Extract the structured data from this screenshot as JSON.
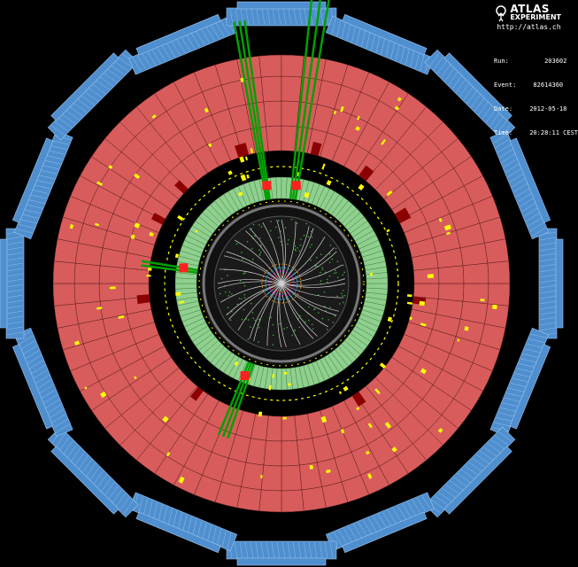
{
  "experiment": {
    "logo_line1": "ATLAS",
    "logo_line2": "EXPERIMENT",
    "url": "http://atlas.ch"
  },
  "event_info": [
    {
      "key": "Run:",
      "value": "     203602"
    },
    {
      "key": "Event:",
      "value": "  82614360"
    },
    {
      "key": "Date:",
      "value": " 2012-05-18"
    },
    {
      "key": "Time:",
      "value": " 20:28:11 CEST"
    }
  ],
  "colors": {
    "background": "#000000",
    "muon_chambers": "#4f8fcf",
    "hadronic_calorimeter": "#d85c5c",
    "em_calorimeter": "#8fd08f",
    "energy_deposit": "#ffff00",
    "hot_cell": "#8b0000",
    "track": "#00a000"
  }
}
